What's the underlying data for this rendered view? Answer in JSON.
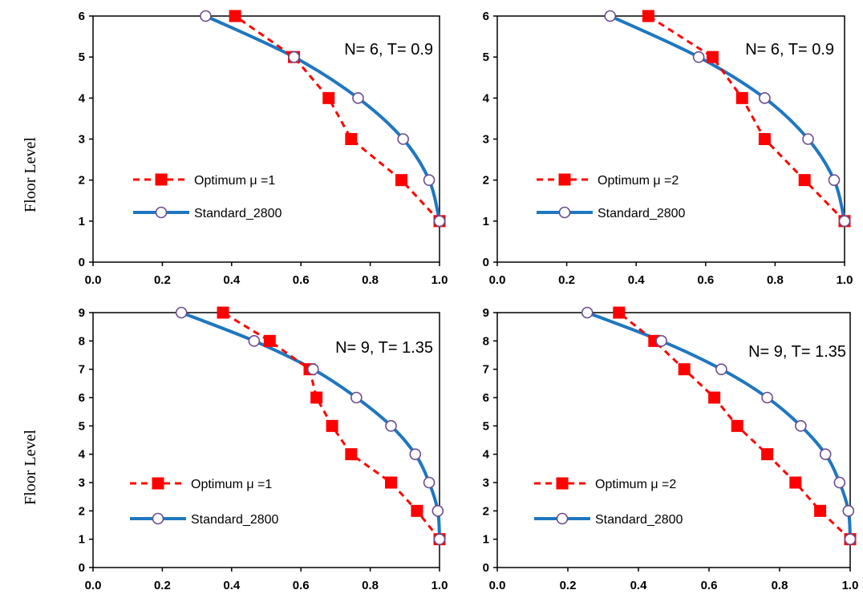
{
  "y_axis_label": "Floor Level",
  "colors": {
    "optimum": "#ff0000",
    "standard": "#1f77c0",
    "marker_fill": "#ffffff",
    "marker_edge": "#6b4c8f"
  },
  "chart_data": [
    {
      "type": "line",
      "annotation": "N= 6, T= 0.9",
      "xlim": [
        0.0,
        1.0
      ],
      "ylim": [
        0,
        6
      ],
      "xticks": [
        "0.0",
        "0.2",
        "0.4",
        "0.6",
        "0.8",
        "1.0"
      ],
      "yticks": [
        "0",
        "1",
        "2",
        "3",
        "4",
        "5",
        "6"
      ],
      "ylabel": "Floor Level",
      "series": [
        {
          "name": "Optimum μ =1",
          "style": "dashed-square",
          "x": [
            1.0,
            0.89,
            0.745,
            0.68,
            0.58,
            0.41
          ],
          "y": [
            1,
            2,
            3,
            4,
            5,
            6
          ]
        },
        {
          "name": "Standard_2800",
          "style": "solid-circle",
          "x": [
            1.0,
            0.97,
            0.895,
            0.765,
            0.58,
            0.325
          ],
          "y": [
            1,
            2,
            3,
            4,
            5,
            6
          ]
        }
      ]
    },
    {
      "type": "line",
      "annotation": "N= 6, T= 0.9",
      "xlim": [
        0.0,
        1.0
      ],
      "ylim": [
        0,
        6
      ],
      "xticks": [
        "0.0",
        "0.2",
        "0.4",
        "0.6",
        "0.8",
        "1.0"
      ],
      "yticks": [
        "0",
        "1",
        "2",
        "3",
        "4",
        "5",
        "6"
      ],
      "ylabel": "",
      "series": [
        {
          "name": "Optimum μ =2",
          "style": "dashed-square",
          "x": [
            1.0,
            0.885,
            0.77,
            0.705,
            0.62,
            0.435
          ],
          "y": [
            1,
            2,
            3,
            4,
            5,
            6
          ]
        },
        {
          "name": "Standard_2800",
          "style": "solid-circle",
          "x": [
            1.0,
            0.97,
            0.895,
            0.77,
            0.58,
            0.325
          ],
          "y": [
            1,
            2,
            3,
            4,
            5,
            6
          ]
        }
      ]
    },
    {
      "type": "line",
      "annotation": "N= 9, T= 1.35",
      "xlim": [
        0.0,
        1.0
      ],
      "ylim": [
        0,
        9
      ],
      "xticks": [
        "0.0",
        "0.2",
        "0.4",
        "0.6",
        "0.8",
        "1.0"
      ],
      "yticks": [
        "0",
        "1",
        "2",
        "3",
        "4",
        "5",
        "6",
        "7",
        "8",
        "9"
      ],
      "ylabel": "Floor Level",
      "series": [
        {
          "name": "Optimum μ =1",
          "style": "dashed-square",
          "x": [
            1.0,
            0.935,
            0.86,
            0.745,
            0.69,
            0.645,
            0.625,
            0.51,
            0.375
          ],
          "y": [
            1,
            2,
            3,
            4,
            5,
            6,
            7,
            8,
            9
          ]
        },
        {
          "name": "Standard_2800",
          "style": "solid-circle",
          "x": [
            1.0,
            0.995,
            0.97,
            0.93,
            0.86,
            0.76,
            0.635,
            0.465,
            0.255
          ],
          "y": [
            1,
            2,
            3,
            4,
            5,
            6,
            7,
            8,
            9
          ]
        }
      ]
    },
    {
      "type": "line",
      "annotation": "N= 9, T= 1.35",
      "xlim": [
        0.0,
        1.0
      ],
      "ylim": [
        0,
        9
      ],
      "xticks": [
        "0.0",
        "0.2",
        "0.4",
        "0.6",
        "0.8",
        "1.0"
      ],
      "yticks": [
        "0",
        "1",
        "2",
        "3",
        "4",
        "5",
        "6",
        "7",
        "8",
        "9"
      ],
      "ylabel": "",
      "series": [
        {
          "name": "Optimum μ =2",
          "style": "dashed-square",
          "x": [
            1.0,
            0.915,
            0.845,
            0.765,
            0.68,
            0.615,
            0.53,
            0.445,
            0.345
          ],
          "y": [
            1,
            2,
            3,
            4,
            5,
            6,
            7,
            8,
            9
          ]
        },
        {
          "name": "Standard_2800",
          "style": "solid-circle",
          "x": [
            1.0,
            0.995,
            0.97,
            0.93,
            0.86,
            0.765,
            0.635,
            0.465,
            0.255
          ],
          "y": [
            1,
            2,
            3,
            4,
            5,
            6,
            7,
            8,
            9
          ]
        }
      ]
    }
  ]
}
